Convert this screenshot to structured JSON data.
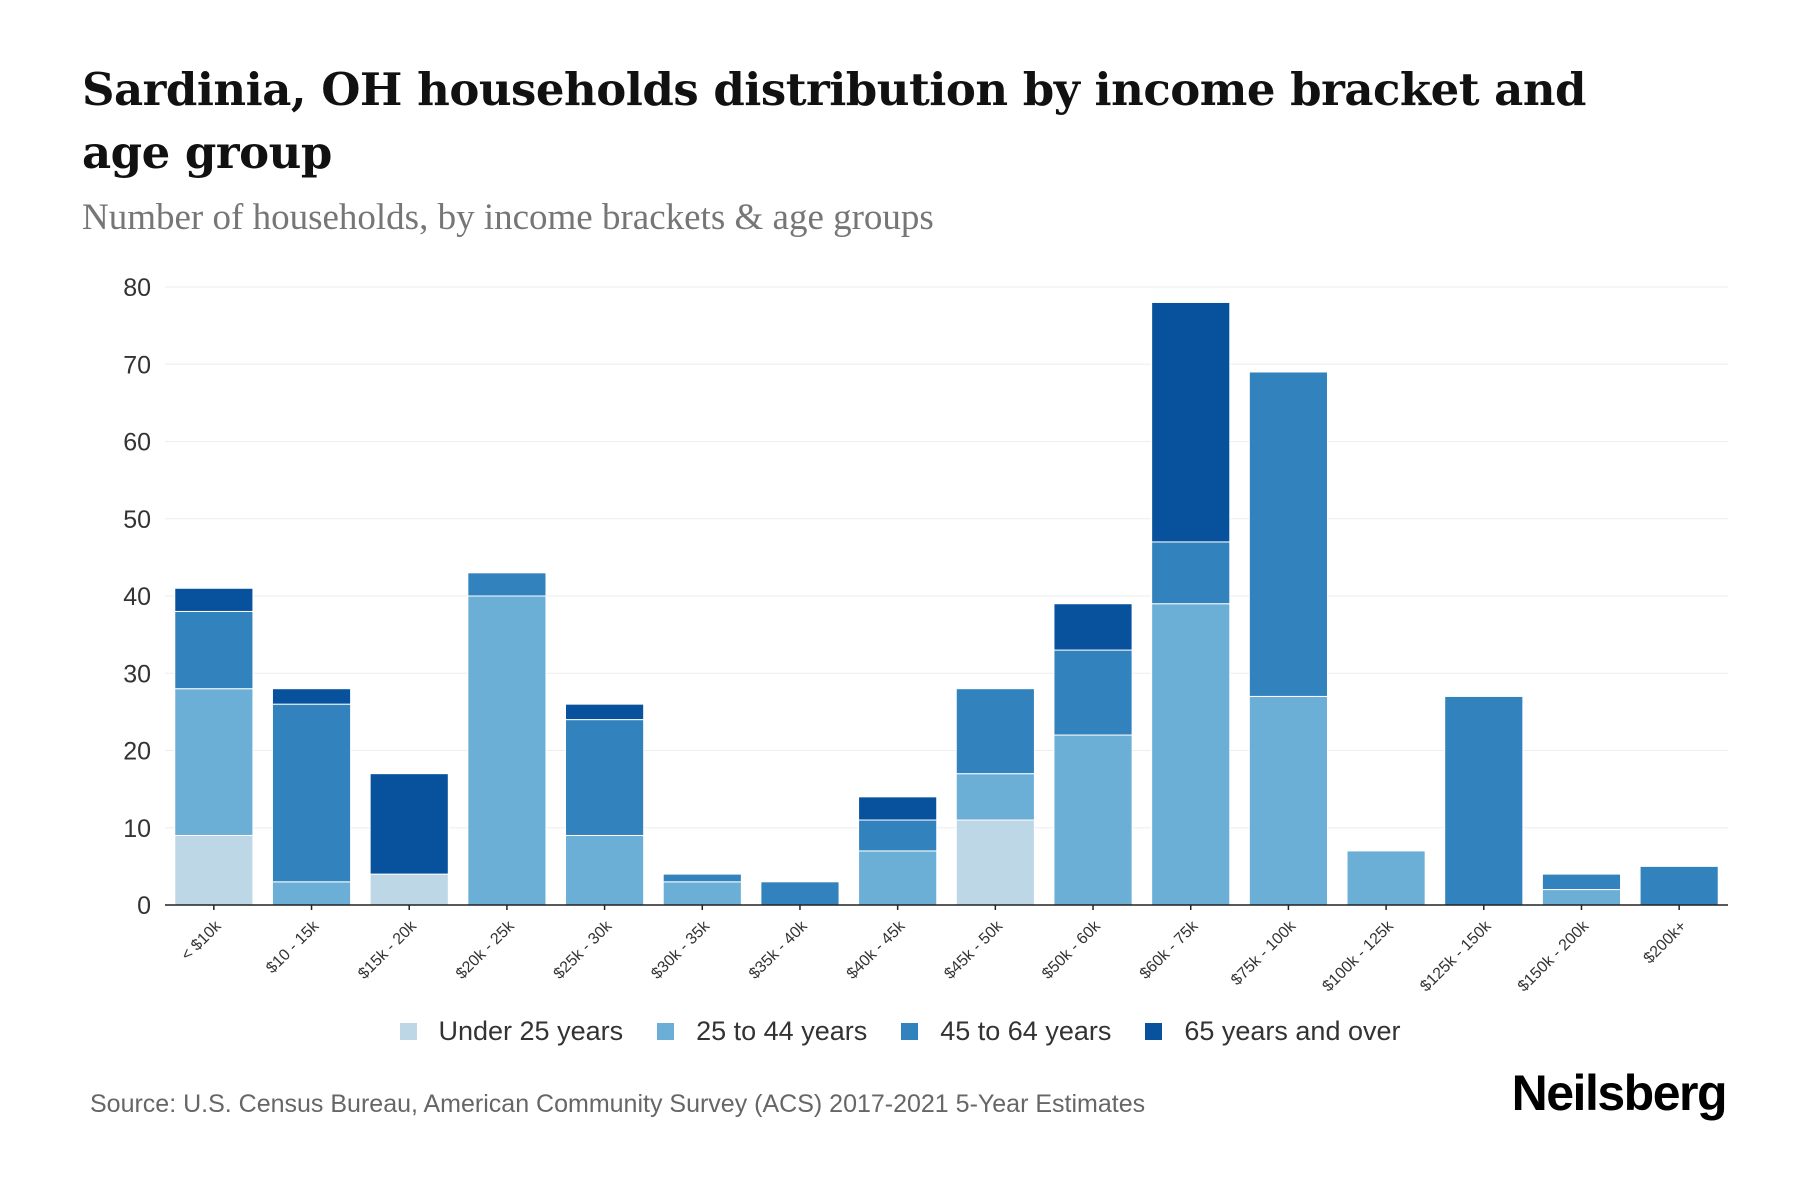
{
  "header": {
    "title": "Sardinia, OH households distribution by income bracket and age group",
    "subtitle": "Number of households, by income brackets & age groups"
  },
  "footer": {
    "source": "Source: U.S. Census Bureau, American Community Survey (ACS) 2017-2021 5-Year Estimates",
    "brand": "Neilsberg"
  },
  "chart_data": {
    "type": "bar",
    "stacked": true,
    "title": "Sardinia, OH households distribution by income bracket and age group",
    "subtitle": "Number of households, by income brackets & age groups",
    "xlabel": "",
    "ylabel": "",
    "ylim": [
      0,
      80
    ],
    "yticks": [
      0,
      10,
      20,
      30,
      40,
      50,
      60,
      70,
      80
    ],
    "grid": true,
    "legend_position": "bottom-center",
    "categories": [
      "< $10k",
      "$10 - 15k",
      "$15k - 20k",
      "$20k - 25k",
      "$25k - 30k",
      "$30k - 35k",
      "$35k - 40k",
      "$40k - 45k",
      "$45k - 50k",
      "$50k - 60k",
      "$60k - 75k",
      "$75k - 100k",
      "$100k - 125k",
      "$125k - 150k",
      "$150k - 200k",
      "$200k+"
    ],
    "series": [
      {
        "name": "Under 25 years",
        "color": "#bdd7e7",
        "values": [
          9,
          0,
          4,
          0,
          0,
          0,
          0,
          0,
          11,
          0,
          0,
          0,
          0,
          0,
          0,
          0
        ]
      },
      {
        "name": "25 to 44 years",
        "color": "#6baed6",
        "values": [
          19,
          3,
          0,
          40,
          9,
          3,
          0,
          7,
          6,
          22,
          39,
          27,
          7,
          0,
          2,
          0
        ]
      },
      {
        "name": "45 to 64 years",
        "color": "#3182bd",
        "values": [
          10,
          23,
          0,
          3,
          15,
          1,
          3,
          4,
          11,
          11,
          8,
          42,
          0,
          27,
          2,
          5
        ]
      },
      {
        "name": "65 years and over",
        "color": "#08519c",
        "values": [
          3,
          2,
          13,
          0,
          2,
          0,
          0,
          3,
          0,
          6,
          31,
          0,
          0,
          0,
          0,
          0
        ]
      }
    ]
  }
}
